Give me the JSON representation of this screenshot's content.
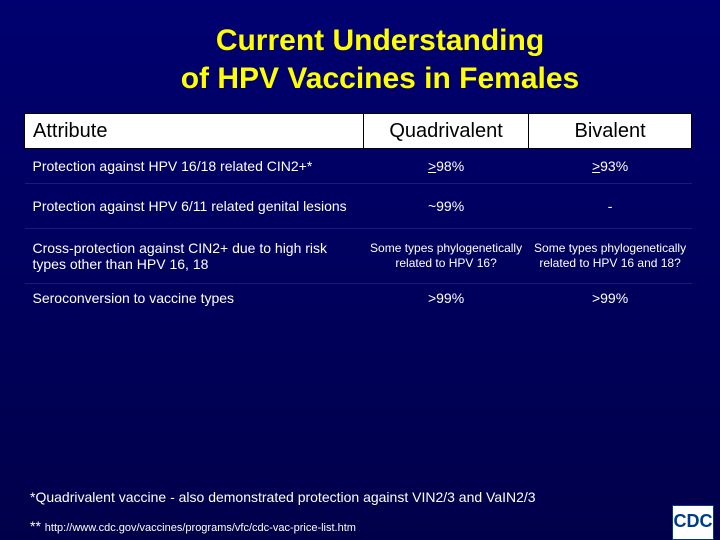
{
  "title": {
    "line1": "Current Understanding",
    "line2": "of HPV Vaccines in Females"
  },
  "table": {
    "header": [
      "Attribute",
      "Quadrivalent",
      "Bivalent"
    ],
    "rows": [
      [
        "Protection against HPV 16/18 related CIN2+*",
        {
          "prefix": ">",
          "text": "98%"
        },
        {
          "prefix": ">",
          "text": "93%"
        }
      ],
      [
        "Protection against HPV 6/11 related genital lesions",
        "~99%",
        "-"
      ],
      [
        "Cross-protection against CIN2+ due to high risk types other than HPV 16, 18",
        "Some types phylogenetically related to HPV 16?",
        "Some types phylogenetically related to HPV 16 and 18?"
      ],
      [
        "Seroconversion to vaccine types",
        ">99%",
        ">99%"
      ]
    ]
  },
  "footnotes": {
    "note1": "*Quadrivalent vaccine - also demonstrated protection against VIN2/3 and VaIN2/3",
    "note2_mark": "**",
    "note2_url": "http://www.cdc.gov/vaccines/programs/vfc/cdc-vac-price-list.htm"
  },
  "logo": {
    "text": "CDC"
  }
}
